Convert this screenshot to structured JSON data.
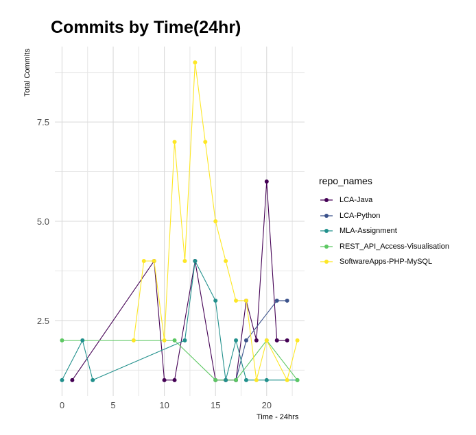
{
  "chart_data": {
    "type": "line",
    "title": "Commits by Time(24hr)",
    "xlabel": "Time - 24hrs",
    "ylabel": "Total Commits",
    "xlim": [
      -0.7,
      23.7
    ],
    "ylim": [
      0.6,
      9.4
    ],
    "xticks": [
      0,
      5,
      10,
      15,
      20
    ],
    "yticks": [
      2.5,
      5.0,
      7.5
    ],
    "ytick_labels": [
      "2.5",
      "5.0",
      "7.5"
    ],
    "grid": true,
    "legend_title": "repo_names",
    "legend_position": "right",
    "series": [
      {
        "name": "LCA-Java",
        "color": "#440154",
        "points": [
          [
            1,
            1
          ],
          [
            9,
            4
          ],
          [
            10,
            1
          ],
          [
            11,
            1
          ],
          [
            13,
            4
          ],
          [
            15,
            1
          ],
          [
            16,
            1
          ],
          [
            17,
            1
          ],
          [
            18,
            3
          ],
          [
            19,
            2
          ],
          [
            20,
            6
          ],
          [
            21,
            2
          ],
          [
            22,
            2
          ]
        ]
      },
      {
        "name": "LCA-Python",
        "color": "#3b528b",
        "points": [
          [
            17,
            1
          ],
          [
            18,
            2
          ],
          [
            21,
            3
          ],
          [
            22,
            3
          ]
        ]
      },
      {
        "name": "MLA-Assignment",
        "color": "#21908c",
        "points": [
          [
            0,
            1
          ],
          [
            2,
            2
          ],
          [
            3,
            1
          ],
          [
            12,
            2
          ],
          [
            13,
            4
          ],
          [
            15,
            3
          ],
          [
            16,
            1
          ],
          [
            17,
            2
          ],
          [
            18,
            1
          ],
          [
            20,
            1
          ],
          [
            23,
            1
          ]
        ]
      },
      {
        "name": "REST_API_Access-Visualisation",
        "color": "#5dc863",
        "points": [
          [
            0,
            2
          ],
          [
            11,
            2
          ],
          [
            15,
            1
          ],
          [
            17,
            1
          ],
          [
            20,
            2
          ],
          [
            23,
            1
          ]
        ]
      },
      {
        "name": "SoftwareApps-PHP-MySQL",
        "color": "#fde725",
        "points": [
          [
            7,
            2
          ],
          [
            8,
            4
          ],
          [
            9,
            4
          ],
          [
            10,
            2
          ],
          [
            11,
            7
          ],
          [
            12,
            4
          ],
          [
            13,
            9
          ],
          [
            14,
            7
          ],
          [
            15,
            5
          ],
          [
            16,
            4
          ],
          [
            17,
            3
          ],
          [
            18,
            3
          ],
          [
            19,
            1
          ],
          [
            20,
            2
          ],
          [
            22,
            1
          ],
          [
            23,
            2
          ]
        ]
      }
    ]
  }
}
